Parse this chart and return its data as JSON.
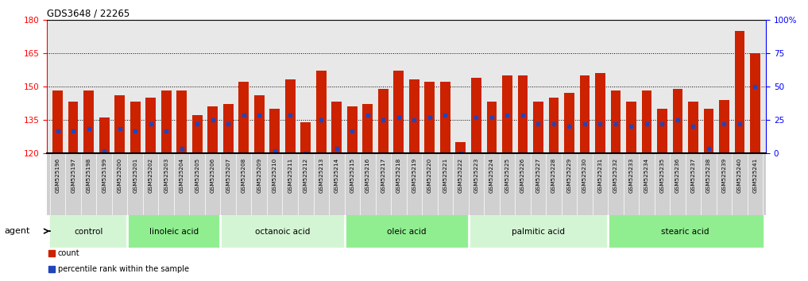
{
  "title": "GDS3648 / 22265",
  "samples": [
    "GSM525196",
    "GSM525197",
    "GSM525198",
    "GSM525199",
    "GSM525200",
    "GSM525201",
    "GSM525202",
    "GSM525203",
    "GSM525204",
    "GSM525205",
    "GSM525206",
    "GSM525207",
    "GSM525208",
    "GSM525209",
    "GSM525210",
    "GSM525211",
    "GSM525212",
    "GSM525213",
    "GSM525214",
    "GSM525215",
    "GSM525216",
    "GSM525217",
    "GSM525218",
    "GSM525219",
    "GSM525220",
    "GSM525221",
    "GSM525222",
    "GSM525223",
    "GSM525224",
    "GSM525225",
    "GSM525226",
    "GSM525227",
    "GSM525228",
    "GSM525229",
    "GSM525230",
    "GSM525231",
    "GSM525232",
    "GSM525233",
    "GSM525234",
    "GSM525235",
    "GSM525236",
    "GSM525237",
    "GSM525238",
    "GSM525239",
    "GSM525240",
    "GSM525241"
  ],
  "bar_heights": [
    148,
    143,
    148,
    136,
    146,
    143,
    145,
    148,
    148,
    137,
    141,
    142,
    152,
    146,
    140,
    153,
    134,
    157,
    143,
    141,
    142,
    149,
    157,
    153,
    152,
    152,
    125,
    154,
    143,
    155,
    155,
    143,
    145,
    147,
    155,
    156,
    148,
    143,
    148,
    140,
    149,
    143,
    140,
    144,
    175,
    165
  ],
  "percentile_values": [
    130,
    130,
    131,
    121,
    131,
    130,
    133,
    130,
    122,
    133,
    135,
    133,
    137,
    137,
    121,
    137,
    120,
    135,
    122,
    130,
    137,
    135,
    136,
    135,
    136,
    137,
    120,
    136,
    136,
    137,
    137,
    133,
    133,
    132,
    133,
    133,
    133,
    132,
    133,
    133,
    135,
    132,
    122,
    133,
    133,
    150
  ],
  "groups": [
    {
      "label": "control",
      "start": 0,
      "end": 5,
      "color": "#d4f5d4"
    },
    {
      "label": "linoleic acid",
      "start": 5,
      "end": 11,
      "color": "#90ee90"
    },
    {
      "label": "octanoic acid",
      "start": 11,
      "end": 19,
      "color": "#d4f5d4"
    },
    {
      "label": "oleic acid",
      "start": 19,
      "end": 27,
      "color": "#90ee90"
    },
    {
      "label": "palmitic acid",
      "start": 27,
      "end": 36,
      "color": "#d4f5d4"
    },
    {
      "label": "stearic acid",
      "start": 36,
      "end": 46,
      "color": "#90ee90"
    }
  ],
  "ylim": [
    120,
    180
  ],
  "yticks_left": [
    120,
    135,
    150,
    165,
    180
  ],
  "yticks_right": [
    0,
    25,
    50,
    75,
    100
  ],
  "right_yticklabels": [
    "0",
    "25",
    "50",
    "75",
    "100%"
  ],
  "bar_color": "#cc2200",
  "dot_color": "#2244bb",
  "bg_color": "#e8e8e8",
  "xtick_bg": "#d0d0d0",
  "legend_items": [
    {
      "color": "#cc2200",
      "label": "count"
    },
    {
      "color": "#2244bb",
      "label": "percentile rank within the sample"
    }
  ],
  "agent_label": "agent"
}
